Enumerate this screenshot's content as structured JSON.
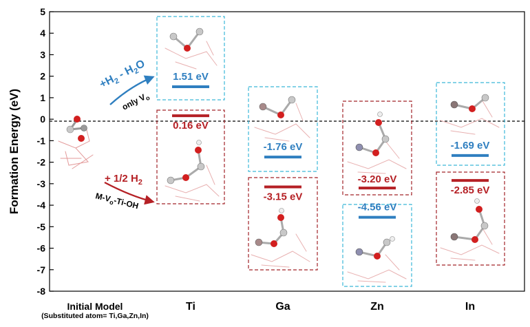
{
  "chart_data": {
    "type": "scatter",
    "title": "",
    "ylabel": "Formation Energy (eV)",
    "xlabel": "",
    "ylim": [
      -8,
      5
    ],
    "yticks": [
      5,
      4,
      3,
      2,
      1,
      0,
      -1,
      -2,
      -3,
      -4,
      -5,
      -6,
      -7,
      -8
    ],
    "categories": [
      "Initial Model",
      "Ti",
      "Ga",
      "Zn",
      "In"
    ],
    "category_note": "(Substituted atom= Ti,Ga,Zn,In)",
    "zero_line": true,
    "series": [
      {
        "name": "+H2 - H2O (only VO)",
        "color": "#2f7fc0",
        "values": [
          null,
          1.51,
          -1.76,
          -4.56,
          -1.69
        ],
        "labels": [
          "",
          "1.51 eV",
          "-1.76 eV",
          "-4.56 eV",
          "-1.69 eV"
        ]
      },
      {
        "name": "+ 1/2 H2 (M-VO-Ti-OH)",
        "color": "#b52025",
        "values": [
          null,
          0.16,
          -3.15,
          -3.2,
          -2.85
        ],
        "labels": [
          "",
          "0.16 eV",
          "-3.15 eV",
          "-3.20 eV",
          "-2.85 eV"
        ]
      }
    ],
    "annotations": {
      "arrow_up_label_main": "+H",
      "arrow_up_label_sub": "2",
      "arrow_up_label_rest": " - H",
      "arrow_up_label_sub2": "2",
      "arrow_up_label_end": "O",
      "arrow_up_note_main": "only V",
      "arrow_up_note_sub": "o",
      "arrow_down_label_main": "+ 1/2 H",
      "arrow_down_label_sub": "2",
      "arrow_down_note_a": "M-V",
      "arrow_down_note_sub": "o",
      "arrow_down_note_b": "-Ti-OH"
    }
  },
  "colors": {
    "blue": "#2f7fc0",
    "red": "#b52025",
    "blue_box": "#3bb8d8",
    "red_box": "#a22328"
  }
}
